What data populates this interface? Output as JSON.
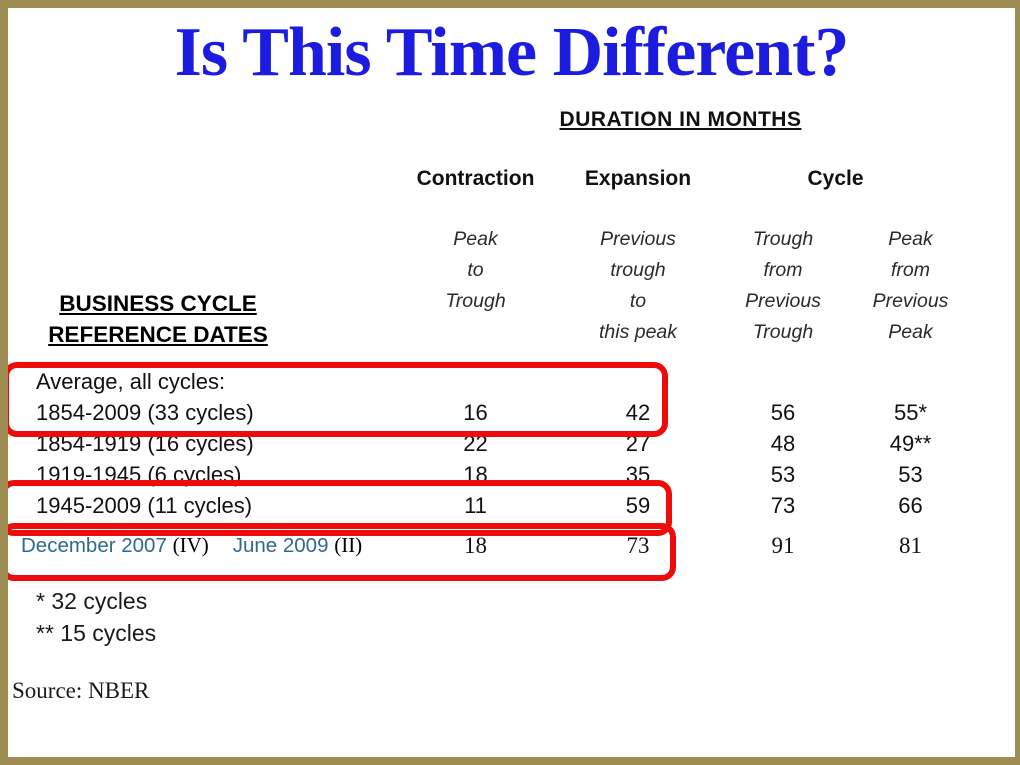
{
  "slide": {
    "title": "Is This Time Different?",
    "source": "Source: NBER"
  },
  "colors": {
    "title_blue": "#1c1ce0",
    "highlight_red": "#ed0c0c",
    "border_gold": "#9e8c52",
    "date_blue": "#30698f"
  },
  "table": {
    "section_title": "DURATION IN MONTHS",
    "row_header": "BUSINESS CYCLE\nREFERENCE DATES",
    "groups": [
      "Contraction",
      "Expansion",
      "Cycle"
    ],
    "subheaders": [
      "Peak\nto\nTrough",
      "Previous\ntrough\nto\nthis peak",
      "Trough\nfrom\nPrevious\nTrough",
      "Peak\nfrom\nPrevious\nPeak"
    ],
    "rows": [
      {
        "label": "Average, all cycles:",
        "contraction": "",
        "expansion": "",
        "cycle_trough": "",
        "cycle_peak": ""
      },
      {
        "label": "1854-2009 (33 cycles)",
        "contraction": "16",
        "expansion": "42",
        "cycle_trough": "56",
        "cycle_peak": "55*"
      },
      {
        "label": "1854-1919 (16 cycles)",
        "contraction": "22",
        "expansion": "27",
        "cycle_trough": "48",
        "cycle_peak": "49**"
      },
      {
        "label": "1919-1945 (6 cycles)",
        "contraction": "18",
        "expansion": "35",
        "cycle_trough": "53",
        "cycle_peak": "53"
      },
      {
        "label": "1945-2009 (11 cycles)",
        "contraction": "11",
        "expansion": "59",
        "cycle_trough": "73",
        "cycle_peak": "66"
      }
    ],
    "current_row": {
      "peak_date": "December 2007",
      "peak_quarter": "(IV)",
      "trough_date": "June 2009",
      "trough_quarter": "(II)",
      "contraction": "18",
      "expansion": "73",
      "cycle_trough": "91",
      "cycle_peak": "81"
    },
    "footnotes": [
      "* 32 cycles",
      "** 15 cycles"
    ]
  }
}
